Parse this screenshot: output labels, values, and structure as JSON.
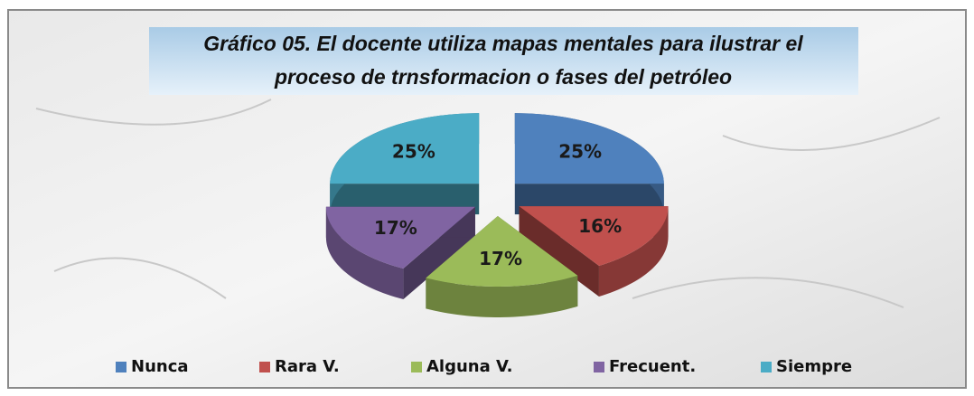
{
  "chart_data": {
    "type": "pie",
    "title": [
      "Gráfico 05. El docente utiliza mapas mentales para ilustrar el",
      "proceso  de trnsformacion o fases del petróleo"
    ],
    "categories": [
      "Nunca",
      "Rara V.",
      "Alguna V.",
      "Frecuent.",
      "Siempre"
    ],
    "values": [
      25,
      16,
      17,
      17,
      25
    ],
    "value_labels": [
      "25%",
      "16%",
      "17%",
      "17%",
      "25%"
    ],
    "colors": [
      "#4f81bd",
      "#c0504d",
      "#9bbb59",
      "#8064a2",
      "#4bacc6"
    ],
    "legend": "bottom"
  }
}
